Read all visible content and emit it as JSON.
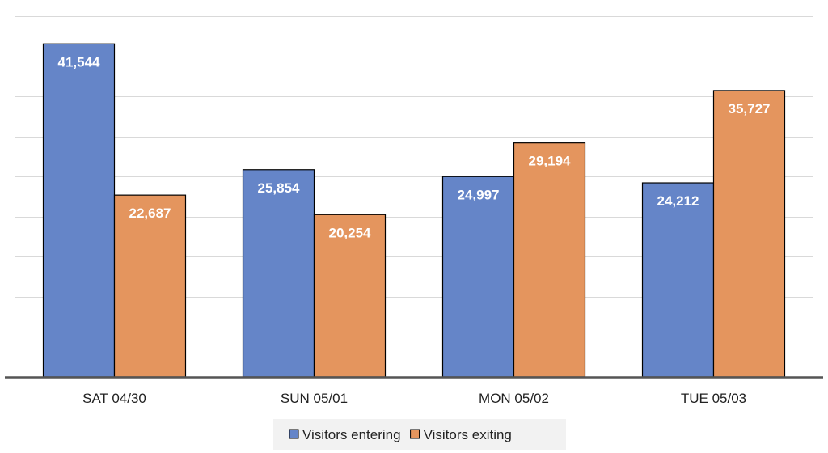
{
  "chart_data": {
    "type": "bar",
    "title": "",
    "xlabel": "",
    "ylabel": "",
    "categories": [
      "SAT 04/30",
      "SUN 05/01",
      "MON 05/02",
      "TUE 05/03"
    ],
    "series": [
      {
        "name": "Visitors entering",
        "values": [
          41544,
          25854,
          24997,
          24212
        ],
        "labels": [
          "41,544",
          "25,854",
          "24,997",
          "24,212"
        ],
        "color": "#6585C8"
      },
      {
        "name": "Visitors exiting",
        "values": [
          22687,
          20254,
          29194,
          35727
        ],
        "labels": [
          "22,687",
          "20,254",
          "29,194",
          "35,727"
        ],
        "color": "#E4955E"
      }
    ],
    "ylim": [
      0,
      45000
    ],
    "grid": true,
    "y_tick_labels_shown": false,
    "legend_position": "bottom-center",
    "grid_color": "#D9D9D9",
    "axis_color": "#555555",
    "bar_edge_color": "#000000"
  }
}
